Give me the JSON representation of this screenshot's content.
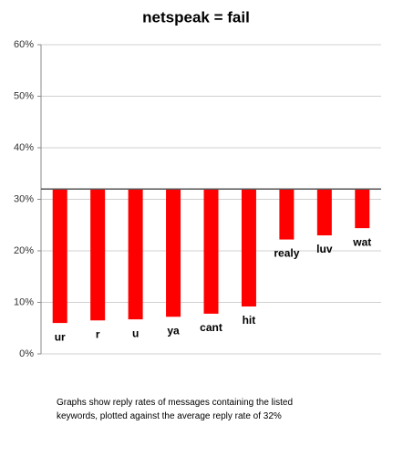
{
  "chart_data": {
    "type": "bar",
    "title": "netspeak = fail",
    "categories": [
      "ur",
      "r",
      "u",
      "ya",
      "cant",
      "hit",
      "realy",
      "luv",
      "wat"
    ],
    "values": [
      6,
      6.5,
      6.7,
      7.2,
      7.8,
      9.2,
      22.2,
      23,
      24.4
    ],
    "baseline": 32,
    "color": "#ff0000",
    "ylim": [
      0,
      60
    ],
    "yticks": [
      {
        "value": 0,
        "label": "0%"
      },
      {
        "value": 10,
        "label": "10%"
      },
      {
        "value": 20,
        "label": "20%"
      },
      {
        "value": 30,
        "label": "30%"
      },
      {
        "value": 40,
        "label": "40%"
      },
      {
        "value": 50,
        "label": "50%"
      },
      {
        "value": 60,
        "label": "60%"
      }
    ],
    "grid": true,
    "note": "Graphs show reply rates of messages containing the listed keywords, plotted against the average reply rate of 32%"
  }
}
